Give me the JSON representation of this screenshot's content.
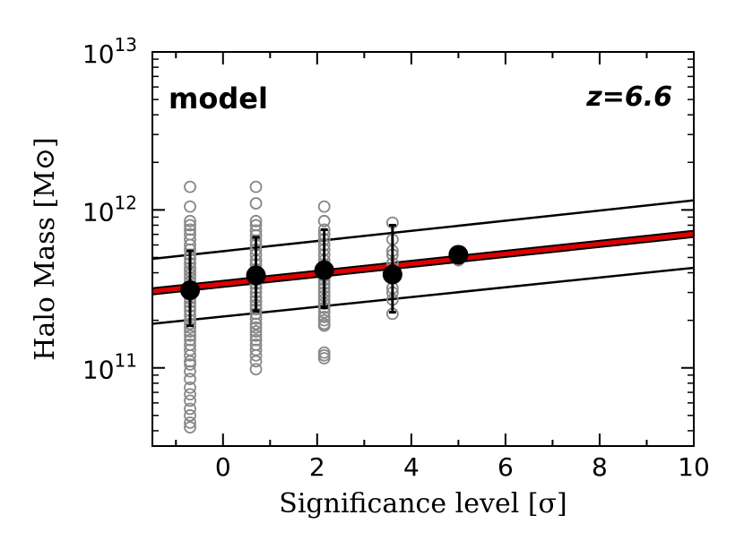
{
  "chart_data": {
    "type": "scatter",
    "xlabel": "Significance level [σ]",
    "ylabel": "Halo Mass [M⊙]",
    "xlim": [
      -1.5,
      10
    ],
    "ylim": [
      32000000000.0,
      10000000000000.0
    ],
    "y_scale": "log",
    "x_ticks": [
      0,
      2,
      4,
      6,
      8,
      10
    ],
    "x_tick_labels": [
      "0",
      "2",
      "4",
      "6",
      "8",
      "10"
    ],
    "y_major_ticks": [
      {
        "value": 100000000000.0,
        "base": "10",
        "exp": "11"
      },
      {
        "value": 1000000000000.0,
        "base": "10",
        "exp": "12"
      },
      {
        "value": 10000000000000.0,
        "base": "10",
        "exp": "13"
      }
    ],
    "annotations": {
      "left": "model",
      "right": "z=6.6"
    },
    "colors": {
      "individual": "#888888",
      "mean": "#000000",
      "fit": "#dd0000",
      "scatter_lines": "#000000"
    },
    "series": [
      {
        "name": "individual halos",
        "style": "open-circle",
        "groups": [
          {
            "x": -0.7,
            "y": [
              1400000000000.0,
              1050000000000.0,
              850000000000.0,
              800000000000.0,
              750000000000.0,
              700000000000.0,
              650000000000.0,
              600000000000.0,
              560000000000.0,
              520000000000.0,
              490000000000.0,
              460000000000.0,
              430000000000.0,
              410000000000.0,
              390000000000.0,
              370000000000.0,
              350000000000.0,
              330000000000.0,
              310000000000.0,
              290000000000.0,
              275000000000.0,
              260000000000.0,
              245000000000.0,
              230000000000.0,
              215000000000.0,
              200000000000.0,
              190000000000.0,
              180000000000.0,
              170000000000.0,
              160000000000.0,
              150000000000.0,
              140000000000.0,
              130000000000.0,
              120000000000.0,
              110000000000.0,
              105000000000.0,
              95000000000.0,
              85000000000.0,
              75000000000.0,
              68000000000.0,
              62000000000.0,
              55000000000.0,
              50000000000.0,
              45000000000.0,
              42000000000.0
            ]
          },
          {
            "x": 0.7,
            "y": [
              1400000000000.0,
              1100000000000.0,
              850000000000.0,
              800000000000.0,
              740000000000.0,
              690000000000.0,
              640000000000.0,
              600000000000.0,
              560000000000.0,
              520000000000.0,
              480000000000.0,
              450000000000.0,
              420000000000.0,
              400000000000.0,
              380000000000.0,
              360000000000.0,
              340000000000.0,
              320000000000.0,
              300000000000.0,
              280000000000.0,
              265000000000.0,
              250000000000.0,
              235000000000.0,
              220000000000.0,
              205000000000.0,
              190000000000.0,
              180000000000.0,
              170000000000.0,
              160000000000.0,
              150000000000.0,
              140000000000.0,
              130000000000.0,
              120000000000.0,
              110000000000.0,
              98000000000.0
            ]
          },
          {
            "x": 2.15,
            "y": [
              1050000000000.0,
              850000000000.0,
              750000000000.0,
              700000000000.0,
              650000000000.0,
              600000000000.0,
              560000000000.0,
              520000000000.0,
              480000000000.0,
              450000000000.0,
              420000000000.0,
              400000000000.0,
              380000000000.0,
              360000000000.0,
              340000000000.0,
              320000000000.0,
              300000000000.0,
              285000000000.0,
              270000000000.0,
              255000000000.0,
              240000000000.0,
              225000000000.0,
              210000000000.0,
              200000000000.0,
              190000000000.0,
              185000000000.0,
              125000000000.0,
              120000000000.0,
              115000000000.0
            ]
          },
          {
            "x": 3.6,
            "y": [
              830000000000.0,
              650000000000.0,
              550000000000.0,
              520000000000.0,
              460000000000.0,
              430000000000.0,
              400000000000.0,
              370000000000.0,
              320000000000.0,
              300000000000.0,
              270000000000.0,
              220000000000.0
            ]
          },
          {
            "x": 5.0,
            "y": [
              510000000000.0,
              480000000000.0
            ]
          }
        ]
      },
      {
        "name": "binned mean",
        "style": "filled-circle",
        "points": [
          {
            "x": -0.7,
            "y": 310000000000.0,
            "ylo": 185000000000.0,
            "yhi": 550000000000.0
          },
          {
            "x": 0.7,
            "y": 385000000000.0,
            "ylo": 230000000000.0,
            "yhi": 670000000000.0
          },
          {
            "x": 2.15,
            "y": 415000000000.0,
            "ylo": 240000000000.0,
            "yhi": 750000000000.0
          },
          {
            "x": 3.6,
            "y": 390000000000.0,
            "ylo": 225000000000.0,
            "yhi": 800000000000.0
          },
          {
            "x": 5.0,
            "y": 520000000000.0
          }
        ]
      },
      {
        "name": "best fit",
        "style": "line-red",
        "points": [
          [
            -1.5,
            305000000000.0
          ],
          [
            10,
            705000000000.0
          ]
        ]
      },
      {
        "name": "upper scatter",
        "style": "line-black",
        "points": [
          [
            -1.5,
            490000000000.0
          ],
          [
            10,
            1150000000000.0
          ]
        ]
      },
      {
        "name": "lower scatter",
        "style": "line-black",
        "points": [
          [
            -1.5,
            190000000000.0
          ],
          [
            10,
            430000000000.0
          ]
        ]
      }
    ]
  }
}
